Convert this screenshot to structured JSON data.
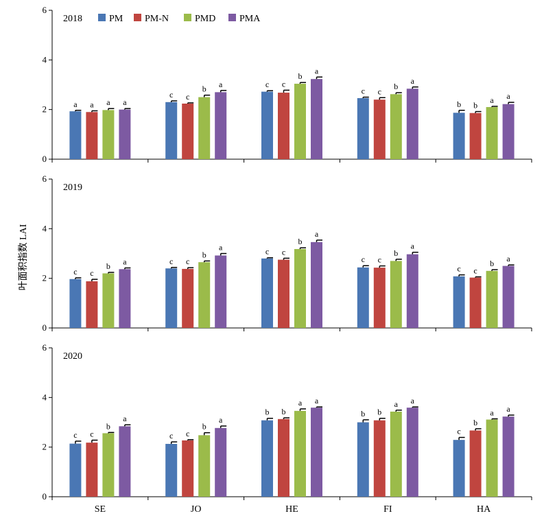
{
  "chart_data": {
    "type": "bar",
    "ylabel": "叶面积指数 LAI",
    "ylim": [
      0,
      6
    ],
    "yticks": [
      "0",
      "2",
      "4",
      "6"
    ],
    "categories": [
      "SE",
      "JO",
      "HE",
      "FI",
      "HA"
    ],
    "series_names": [
      "PM",
      "PM-N",
      "PMD",
      "PMA"
    ],
    "colors": [
      "#4a77b4",
      "#c0453f",
      "#9bbb4a",
      "#7d5aa2"
    ],
    "legend_position": "top",
    "panels": [
      {
        "year": "2018",
        "values": [
          [
            1.93,
            1.9,
            1.98,
            2.0
          ],
          [
            2.3,
            2.24,
            2.5,
            2.7
          ],
          [
            2.72,
            2.68,
            3.04,
            3.23
          ],
          [
            2.46,
            2.4,
            2.62,
            2.84
          ],
          [
            1.87,
            1.86,
            2.1,
            2.22
          ]
        ],
        "errors": [
          [
            0.04,
            0.05,
            0.06,
            0.04
          ],
          [
            0.05,
            0.03,
            0.08,
            0.07
          ],
          [
            0.04,
            0.1,
            0.05,
            0.08
          ],
          [
            0.04,
            0.08,
            0.06,
            0.07
          ],
          [
            0.1,
            0.06,
            0.03,
            0.07
          ]
        ],
        "labels": [
          [
            "a",
            "a",
            "a",
            "a"
          ],
          [
            "c",
            "c",
            "b",
            "a"
          ],
          [
            "c",
            "c",
            "b",
            "a"
          ],
          [
            "c",
            "c",
            "b",
            "a"
          ],
          [
            "b",
            "b",
            "a",
            "a"
          ]
        ]
      },
      {
        "year": "2019",
        "values": [
          [
            1.97,
            1.88,
            2.2,
            2.37
          ],
          [
            2.4,
            2.38,
            2.65,
            2.92
          ],
          [
            2.8,
            2.75,
            3.18,
            3.46
          ],
          [
            2.44,
            2.43,
            2.7,
            2.97
          ],
          [
            2.08,
            2.03,
            2.3,
            2.5
          ]
        ],
        "errors": [
          [
            0.05,
            0.08,
            0.04,
            0.05
          ],
          [
            0.04,
            0.05,
            0.05,
            0.08
          ],
          [
            0.03,
            0.06,
            0.05,
            0.08
          ],
          [
            0.07,
            0.07,
            0.07,
            0.08
          ],
          [
            0.06,
            0.03,
            0.05,
            0.04
          ]
        ],
        "labels": [
          [
            "c",
            "c",
            "b",
            "a"
          ],
          [
            "c",
            "c",
            "b",
            "a"
          ],
          [
            "c",
            "c",
            "b",
            "a"
          ],
          [
            "c",
            "c",
            "b",
            "a"
          ],
          [
            "c",
            "c",
            "b",
            "a"
          ]
        ]
      },
      {
        "year": "2020",
        "values": [
          [
            2.14,
            2.18,
            2.56,
            2.84
          ],
          [
            2.13,
            2.27,
            2.48,
            2.77
          ],
          [
            3.08,
            3.13,
            3.46,
            3.59
          ],
          [
            3.0,
            3.08,
            3.43,
            3.59
          ],
          [
            2.29,
            2.67,
            3.11,
            3.23
          ]
        ],
        "errors": [
          [
            0.1,
            0.1,
            0.03,
            0.06
          ],
          [
            0.08,
            0.03,
            0.1,
            0.08
          ],
          [
            0.08,
            0.05,
            0.08,
            0.03
          ],
          [
            0.1,
            0.08,
            0.06,
            0.03
          ],
          [
            0.1,
            0.07,
            0.03,
            0.06
          ]
        ],
        "labels": [
          [
            "c",
            "c",
            "b",
            "a"
          ],
          [
            "c",
            "c",
            "b",
            "a"
          ],
          [
            "b",
            "b",
            "a",
            "a"
          ],
          [
            "b",
            "b",
            "a",
            "a"
          ],
          [
            "c",
            "b",
            "a",
            "a"
          ]
        ]
      }
    ]
  }
}
